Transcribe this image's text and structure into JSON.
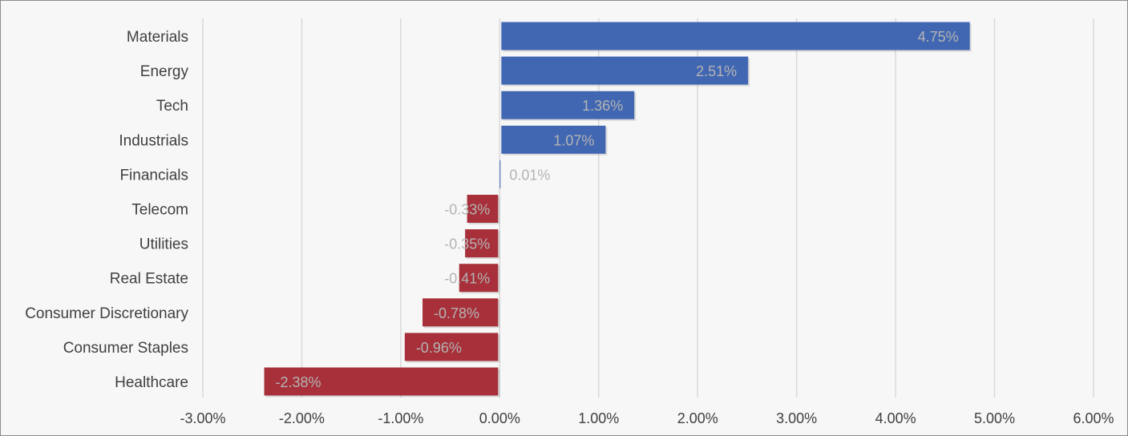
{
  "chart_data": {
    "type": "bar",
    "orientation": "horizontal",
    "categories": [
      "Materials",
      "Energy",
      "Tech",
      "Industrials",
      "Financials",
      "Telecom",
      "Utilities",
      "Real Estate",
      "Consumer Discretionary",
      "Consumer Staples",
      "Healthcare"
    ],
    "values": [
      4.75,
      2.51,
      1.36,
      1.07,
      0.01,
      -0.33,
      -0.35,
      -0.41,
      -0.78,
      -0.96,
      -2.38
    ],
    "value_labels": [
      "4.75%",
      "2.51%",
      "1.36%",
      "1.07%",
      "0.01%",
      "-0.33%",
      "-0.35%",
      "-0.41%",
      "-0.78%",
      "-0.96%",
      "-2.38%"
    ],
    "xlim": [
      -3,
      6
    ],
    "x_ticks": [
      -3,
      -2,
      -1,
      0,
      1,
      2,
      3,
      4,
      5,
      6
    ],
    "x_tick_labels": [
      "-3.00%",
      "-2.00%",
      "-1.00%",
      "0.00%",
      "1.00%",
      "2.00%",
      "3.00%",
      "4.00%",
      "5.00%",
      "6.00%"
    ],
    "title": "",
    "xlabel": "",
    "ylabel": "",
    "grid": "vertical",
    "legend": "none",
    "colors": {
      "positive": "#4267b2",
      "negative": "#a7303a",
      "grid": "#d9d9d9",
      "background": "#f7f7f7",
      "data_label": "#b4b4b4",
      "text": "#404040"
    }
  }
}
